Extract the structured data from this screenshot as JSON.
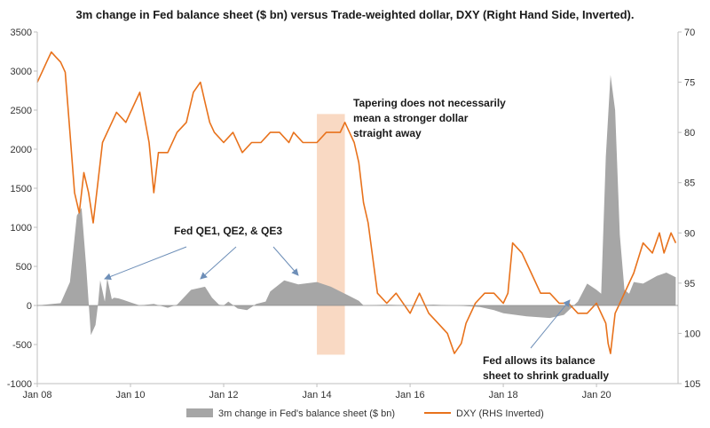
{
  "chart_data": {
    "type": "area",
    "title": "3m change in Fed balance sheet ($ bn) versus Trade-weighted dollar, DXY (Right Hand Side, Inverted).",
    "x_tick_labels": [
      "Jan 08",
      "Jan 10",
      "Jan 12",
      "Jan 14",
      "Jan 16",
      "Jan 18",
      "Jan 20"
    ],
    "x_tick_years": [
      2008,
      2010,
      2012,
      2014,
      2016,
      2018,
      2020
    ],
    "xlim": [
      2008.0,
      2021.75
    ],
    "y_left": {
      "ylim": [
        -1000,
        3500
      ],
      "ticks": [
        "-1000",
        "-500",
        "0",
        "500",
        "1000",
        "1500",
        "2000",
        "2500",
        "3000",
        "3500"
      ]
    },
    "y_right": {
      "ylim": [
        70,
        105
      ],
      "inverted": true,
      "ticks": [
        "70",
        "75",
        "80",
        "85",
        "90",
        "95",
        "100",
        "105"
      ]
    },
    "highlight_band": {
      "x_start": 2014.0,
      "x_end": 2014.6,
      "y_top": 2450,
      "y_bottom": -630,
      "color": "#f9d9c3"
    },
    "series": [
      {
        "name": "3m change in Fed's balance sheet ($ bn)",
        "axis": "left",
        "kind": "area",
        "color": "#a6a6a6",
        "x": [
          2008.0,
          2008.5,
          2008.7,
          2008.85,
          2008.95,
          2009.05,
          2009.15,
          2009.25,
          2009.3,
          2009.35,
          2009.45,
          2009.5,
          2009.6,
          2009.65,
          2009.75,
          2009.85,
          2010.0,
          2010.2,
          2010.5,
          2010.8,
          2011.0,
          2011.3,
          2011.6,
          2011.75,
          2011.9,
          2012.0,
          2012.1,
          2012.3,
          2012.5,
          2012.7,
          2012.9,
          2013.0,
          2013.3,
          2013.6,
          2014.0,
          2014.3,
          2014.7,
          2014.9,
          2015.0,
          2015.5,
          2016.0,
          2016.5,
          2016.9,
          2017.0,
          2017.5,
          2017.8,
          2018.0,
          2018.5,
          2019.0,
          2019.3,
          2019.6,
          2019.8,
          2020.0,
          2020.1,
          2020.2,
          2020.3,
          2020.4,
          2020.5,
          2020.6,
          2020.7,
          2020.8,
          2021.0,
          2021.3,
          2021.5,
          2021.7
        ],
        "values": [
          0,
          30,
          300,
          1150,
          1250,
          500,
          -380,
          -250,
          0,
          320,
          50,
          350,
          80,
          100,
          90,
          70,
          40,
          0,
          20,
          -30,
          10,
          200,
          240,
          100,
          10,
          0,
          50,
          -40,
          -60,
          20,
          50,
          180,
          320,
          270,
          300,
          240,
          120,
          60,
          0,
          10,
          0,
          10,
          0,
          0,
          -20,
          -60,
          -100,
          -140,
          -160,
          -120,
          50,
          280,
          200,
          150,
          1900,
          2950,
          2500,
          900,
          200,
          150,
          300,
          280,
          380,
          420,
          360
        ]
      },
      {
        "name": "DXY (RHS Inverted)",
        "axis": "right",
        "kind": "line",
        "color": "#e8721c",
        "x": [
          2008.0,
          2008.1,
          2008.2,
          2008.3,
          2008.4,
          2008.5,
          2008.6,
          2008.7,
          2008.8,
          2008.9,
          2009.0,
          2009.1,
          2009.2,
          2009.3,
          2009.4,
          2009.5,
          2009.7,
          2009.9,
          2010.0,
          2010.2,
          2010.4,
          2010.5,
          2010.6,
          2010.8,
          2011.0,
          2011.2,
          2011.35,
          2011.5,
          2011.6,
          2011.7,
          2011.8,
          2012.0,
          2012.2,
          2012.4,
          2012.6,
          2012.8,
          2013.0,
          2013.2,
          2013.4,
          2013.5,
          2013.7,
          2014.0,
          2014.2,
          2014.4,
          2014.5,
          2014.6,
          2014.7,
          2014.8,
          2014.9,
          2015.0,
          2015.1,
          2015.3,
          2015.5,
          2015.7,
          2016.0,
          2016.2,
          2016.4,
          2016.6,
          2016.8,
          2016.95,
          2017.1,
          2017.2,
          2017.4,
          2017.6,
          2017.8,
          2018.0,
          2018.1,
          2018.2,
          2018.4,
          2018.6,
          2018.8,
          2019.0,
          2019.2,
          2019.4,
          2019.6,
          2019.8,
          2020.0,
          2020.2,
          2020.25,
          2020.3,
          2020.4,
          2020.5,
          2020.6,
          2020.8,
          2021.0,
          2021.2,
          2021.35,
          2021.45,
          2021.6,
          2021.7
        ],
        "values": [
          75,
          74,
          73,
          72,
          72.5,
          73,
          74,
          80,
          86,
          88,
          84,
          86,
          89,
          85,
          81,
          80,
          78,
          79,
          78,
          76,
          81,
          86,
          82,
          82,
          80,
          79,
          76,
          75,
          77,
          79,
          80,
          81,
          80,
          82,
          81,
          81,
          80,
          80,
          81,
          80,
          81,
          81,
          80,
          80,
          80,
          79,
          80,
          81,
          83,
          87,
          89,
          96,
          97,
          96,
          98,
          96,
          98,
          99,
          100,
          102,
          101,
          99,
          97,
          96,
          96,
          97,
          96,
          91,
          92,
          94,
          96,
          96,
          97,
          97,
          98,
          98,
          97,
          99,
          101,
          102,
          98,
          97,
          96,
          94,
          91,
          92,
          90,
          92,
          90,
          91
        ]
      }
    ],
    "legend": {
      "position": "bottom",
      "entries": [
        "3m change in Fed's balance sheet ($ bn)",
        "DXY (RHS Inverted)"
      ]
    },
    "grid": false,
    "annotations": [
      {
        "lines": [
          "Tapering does not necessarily",
          "mean a stronger dollar",
          "straight away"
        ]
      },
      {
        "lines": [
          "Fed QE1, QE2, & QE3"
        ]
      },
      {
        "lines": [
          "Fed allows its balance",
          "sheet to shrink gradually"
        ]
      }
    ]
  }
}
